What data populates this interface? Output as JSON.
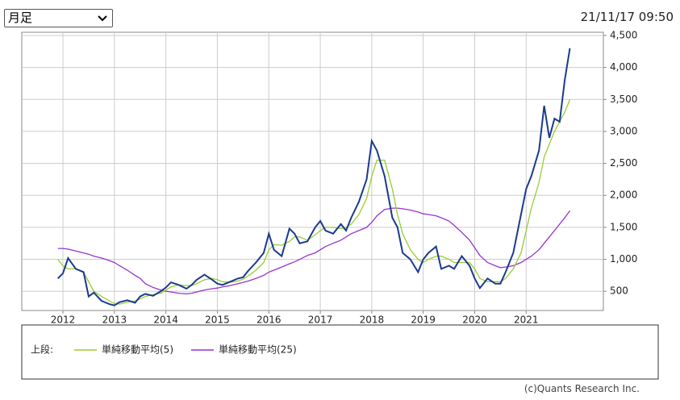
{
  "controls": {
    "period": "月足"
  },
  "timestamp": "21/11/17 09:50",
  "chart_data": {
    "type": "line",
    "x": [
      2011.9,
      2012.0,
      2012.1,
      2012.25,
      2012.4,
      2012.5,
      2012.6,
      2012.75,
      2012.9,
      2013.0,
      2013.1,
      2013.25,
      2013.4,
      2013.5,
      2013.6,
      2013.75,
      2013.9,
      2014.0,
      2014.1,
      2014.25,
      2014.4,
      2014.5,
      2014.6,
      2014.75,
      2014.9,
      2015.0,
      2015.1,
      2015.25,
      2015.4,
      2015.5,
      2015.6,
      2015.75,
      2015.9,
      2016.0,
      2016.1,
      2016.25,
      2016.4,
      2016.5,
      2016.6,
      2016.75,
      2016.9,
      2017.0,
      2017.1,
      2017.25,
      2017.4,
      2017.5,
      2017.6,
      2017.75,
      2017.9,
      2018.0,
      2018.1,
      2018.25,
      2018.4,
      2018.5,
      2018.6,
      2018.75,
      2018.9,
      2019.0,
      2019.1,
      2019.25,
      2019.35,
      2019.5,
      2019.6,
      2019.75,
      2019.9,
      2020.0,
      2020.1,
      2020.25,
      2020.4,
      2020.5,
      2020.6,
      2020.75,
      2020.9,
      2021.0,
      2021.1,
      2021.25,
      2021.35,
      2021.45,
      2021.55,
      2021.65,
      2021.75,
      2021.85
    ],
    "series": [
      {
        "color": "#1a3a8f",
        "values": [
          700,
          780,
          1020,
          850,
          800,
          420,
          480,
          350,
          300,
          280,
          330,
          360,
          320,
          420,
          460,
          430,
          500,
          560,
          640,
          600,
          540,
          600,
          680,
          760,
          680,
          620,
          600,
          650,
          700,
          720,
          820,
          950,
          1100,
          1400,
          1150,
          1050,
          1480,
          1400,
          1250,
          1280,
          1500,
          1600,
          1450,
          1400,
          1550,
          1450,
          1650,
          1900,
          2250,
          2850,
          2700,
          2300,
          1650,
          1500,
          1100,
          1000,
          800,
          1000,
          1100,
          1200,
          850,
          900,
          850,
          1050,
          900,
          700,
          550,
          700,
          620,
          620,
          800,
          1100,
          1700,
          2100,
          2300,
          2700,
          3400,
          2900,
          3200,
          3150,
          3800,
          4300
        ]
      },
      {
        "name": "単純移動平均(5)",
        "color": "#99cc33",
        "values": [
          1000,
          900,
          850,
          850,
          800,
          650,
          500,
          420,
          350,
          310,
          300,
          330,
          350,
          380,
          420,
          450,
          470,
          520,
          570,
          600,
          590,
          590,
          620,
          680,
          700,
          680,
          650,
          640,
          660,
          690,
          740,
          830,
          950,
          1150,
          1230,
          1220,
          1280,
          1350,
          1350,
          1300,
          1380,
          1450,
          1500,
          1500,
          1480,
          1500,
          1550,
          1700,
          1950,
          2300,
          2550,
          2550,
          2100,
          1700,
          1400,
          1150,
          1000,
          950,
          1000,
          1050,
          1050,
          1000,
          950,
          950,
          950,
          850,
          700,
          650,
          650,
          650,
          700,
          850,
          1100,
          1450,
          1800,
          2200,
          2600,
          2800,
          3000,
          3150,
          3300,
          3500
        ]
      },
      {
        "name": "単純移動平均(25)",
        "color": "#9933cc",
        "values": [
          1170,
          1170,
          1160,
          1130,
          1100,
          1080,
          1050,
          1020,
          980,
          950,
          900,
          830,
          750,
          700,
          620,
          560,
          520,
          500,
          490,
          470,
          460,
          470,
          490,
          520,
          540,
          550,
          570,
          590,
          620,
          640,
          660,
          700,
          750,
          800,
          830,
          880,
          930,
          960,
          1000,
          1060,
          1100,
          1150,
          1200,
          1250,
          1300,
          1350,
          1400,
          1450,
          1500,
          1580,
          1680,
          1780,
          1800,
          1800,
          1790,
          1770,
          1740,
          1710,
          1700,
          1680,
          1650,
          1600,
          1530,
          1420,
          1300,
          1180,
          1060,
          950,
          900,
          870,
          880,
          900,
          950,
          1000,
          1050,
          1150,
          1250,
          1350,
          1450,
          1550,
          1650,
          1760
        ]
      }
    ],
    "xlim": [
      2011.2,
      2022.5
    ],
    "ylim": [
      200,
      4550
    ],
    "xticks": [
      2012,
      2013,
      2014,
      2015,
      2016,
      2017,
      2018,
      2019,
      2020,
      2021
    ],
    "yticks": [
      500,
      {
        "value": 1000,
        "label": "1,000"
      },
      {
        "value": 1500,
        "label": "1,500"
      },
      {
        "value": 2000,
        "label": "2,000"
      },
      {
        "value": 2500,
        "label": "2,500"
      },
      {
        "value": 3000,
        "label": "3,000"
      },
      {
        "value": 3500,
        "label": "3,500"
      },
      {
        "value": 4000,
        "label": "4,000"
      },
      {
        "value": 4500,
        "label": "4,500"
      }
    ],
    "grid": true,
    "legend_title": "上段:"
  },
  "footer": "(c)Quants Research Inc."
}
